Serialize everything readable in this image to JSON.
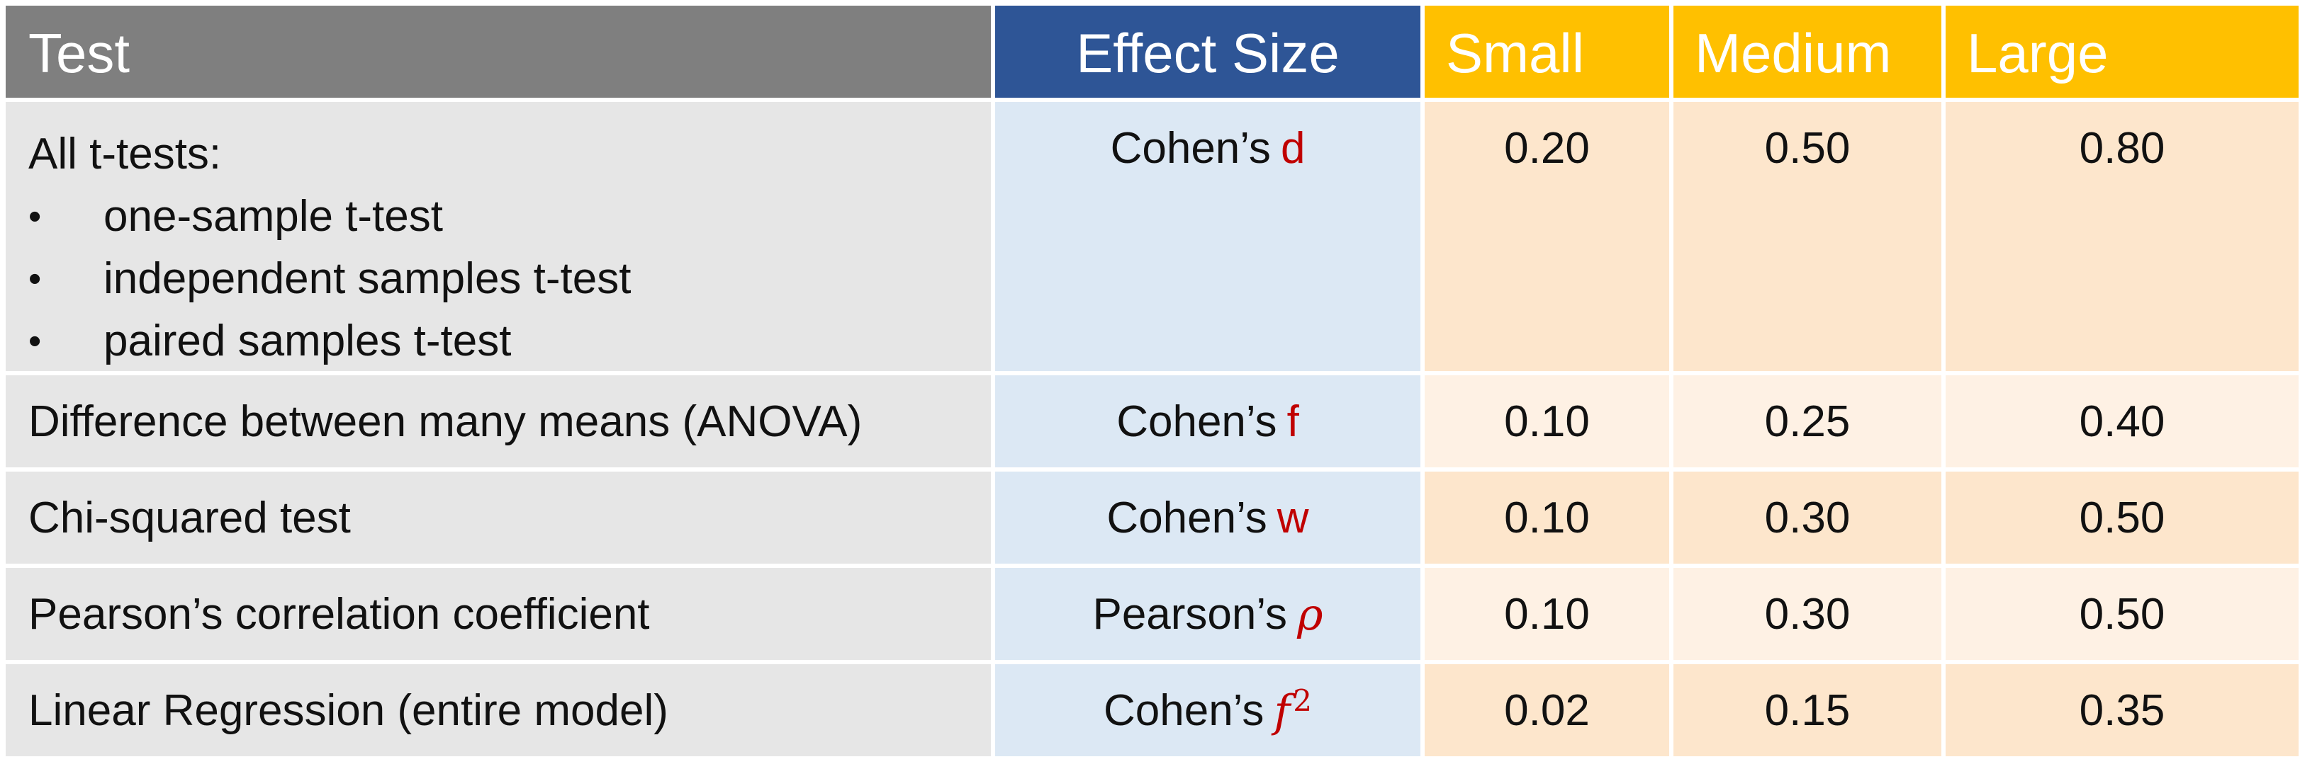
{
  "headers": {
    "test": "Test",
    "effect_size": "Effect Size",
    "small": "Small",
    "medium": "Medium",
    "large": "Large"
  },
  "rows": [
    {
      "test": "All t-tests:",
      "bullets": [
        "one-sample t-test",
        "independent samples t-test",
        "paired samples t-test"
      ],
      "effect_prefix": "Cohen’s",
      "effect_symbol": "d",
      "small": "0.20",
      "medium": "0.50",
      "large": "0.80"
    },
    {
      "test": "Difference between many means (ANOVA)",
      "effect_prefix": "Cohen’s",
      "effect_symbol": "f",
      "small": "0.10",
      "medium": "0.25",
      "large": "0.40"
    },
    {
      "test": "Chi-squared test",
      "effect_prefix": "Cohen’s",
      "effect_symbol": "w",
      "small": "0.10",
      "medium": "0.30",
      "large": "0.50"
    },
    {
      "test": "Pearson’s correlation coefficient",
      "effect_prefix": "Pearson’s",
      "effect_symbol": "ρ",
      "small": "0.10",
      "medium": "0.30",
      "large": "0.50"
    },
    {
      "test": "Linear Regression (entire model)",
      "effect_prefix": "Cohen’s",
      "effect_symbol": "f",
      "effect_superscript": "2",
      "small": "0.02",
      "medium": "0.15",
      "large": "0.35"
    }
  ],
  "colors": {
    "header_test": "#7f7f7f",
    "header_effect": "#2e5596",
    "header_sizes": "#ffc000",
    "test_col": "#e6e6e6",
    "effect_col": "#dce8f4",
    "value_peach": "#fde6cc",
    "value_light": "#fef1e4",
    "symbol": "#c00000"
  }
}
